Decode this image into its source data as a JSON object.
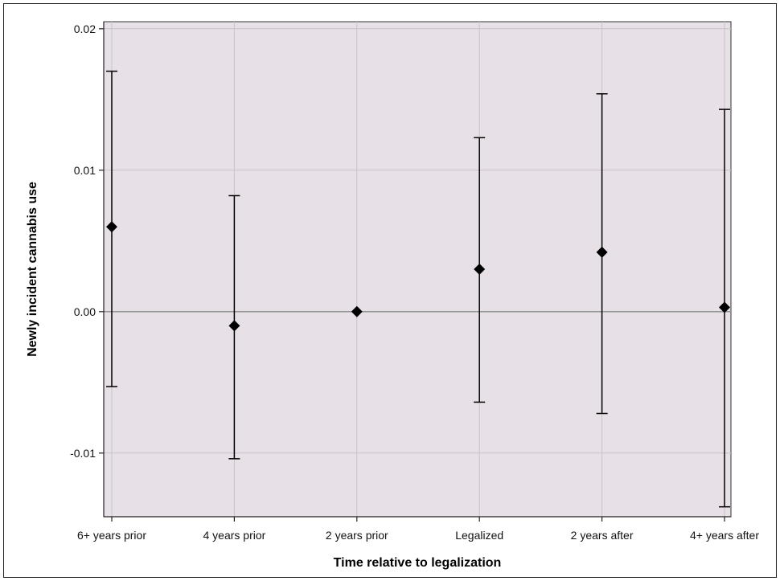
{
  "chart_data": {
    "type": "scatter",
    "subtype": "point-estimate with 95% CI error bars",
    "title": "",
    "xlabel": "Time relative to legalization",
    "ylabel": "Newly incident cannabis use",
    "categories": [
      "6+ years prior",
      "4 years prior",
      "2 years prior",
      "Legalized",
      "2 years after",
      "4+ years after"
    ],
    "series": [
      {
        "estimate": [
          0.006,
          -0.001,
          0.0,
          0.003,
          0.0042,
          0.0003
        ],
        "ci_lower": [
          -0.0053,
          -0.0104,
          null,
          -0.0064,
          -0.0072,
          -0.0138
        ],
        "ci_upper": [
          0.017,
          0.0082,
          null,
          0.0123,
          0.0154,
          0.0143
        ]
      }
    ],
    "ylim": [
      -0.0145,
      0.0205
    ],
    "yticks": [
      0.02,
      0.01,
      0.0,
      -0.01
    ],
    "ytick_labels": [
      "0.02",
      "0.01",
      "0.00",
      "-0.01"
    ],
    "reference_line_y": 0,
    "grid": true,
    "marker": "diamond",
    "colors": {
      "plot_background": "#e7e0e6",
      "gridline": "#c9c2c8",
      "reference_line": "#8a8a8a",
      "marker": "#000000",
      "errorbar": "#000000"
    }
  }
}
